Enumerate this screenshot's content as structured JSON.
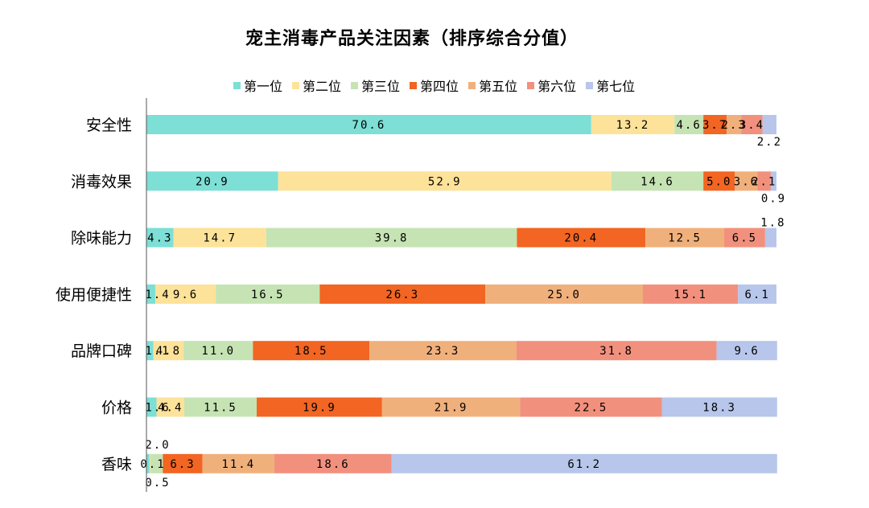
{
  "chart_data": {
    "type": "bar",
    "orientation": "horizontal",
    "stacked": true,
    "title": "宠主消毒产品关注因素（排序综合分值）",
    "categories": [
      "安全性",
      "消毒效果",
      "除味能力",
      "使用便捷性",
      "品牌口碑",
      "价格",
      "香味"
    ],
    "legend_position": "top",
    "series": [
      {
        "name": "第一位",
        "color": "#7ddfd6",
        "values": [
          70.6,
          20.9,
          4.3,
          1.4,
          1.1,
          1.6,
          0.5
        ]
      },
      {
        "name": "第二位",
        "color": "#fde29a",
        "values": [
          13.2,
          52.9,
          14.7,
          9.6,
          4.8,
          4.4,
          0.1
        ]
      },
      {
        "name": "第三位",
        "color": "#c6e3b4",
        "values": [
          4.6,
          14.6,
          39.8,
          16.5,
          11.0,
          11.5,
          2.0
        ]
      },
      {
        "name": "第四位",
        "color": "#f26522",
        "values": [
          3.7,
          5.0,
          20.4,
          26.3,
          18.5,
          19.9,
          6.3
        ]
      },
      {
        "name": "第五位",
        "color": "#f0b07c",
        "values": [
          2.3,
          3.6,
          12.5,
          25.0,
          23.3,
          21.9,
          11.4
        ]
      },
      {
        "name": "第六位",
        "color": "#f2907e",
        "values": [
          3.4,
          2.1,
          6.5,
          15.1,
          31.8,
          22.5,
          18.6
        ]
      },
      {
        "name": "第七位",
        "color": "#b7c6ea",
        "values": [
          2.2,
          0.9,
          1.8,
          6.1,
          9.6,
          18.3,
          61.2
        ]
      }
    ],
    "value_labels": [
      [
        "70.6",
        "13.2",
        "4.6",
        "3.7",
        "2.3",
        "3.4",
        "2.2"
      ],
      [
        "20.9",
        "52.9",
        "14.6",
        "5.0",
        "3.6",
        "2.1",
        "0.9"
      ],
      [
        "4.3",
        "14.7",
        "39.8",
        "20.4",
        "12.5",
        "6.5",
        "1.8"
      ],
      [
        "1.4",
        "9.6",
        "16.5",
        "26.3",
        "25.0",
        "15.1",
        "6.1"
      ],
      [
        "1.1",
        "4.8",
        "11.0",
        "18.5",
        "23.3",
        "31.8",
        "9.6"
      ],
      [
        "1.6",
        "4.4",
        "11.5",
        "19.9",
        "21.9",
        "22.5",
        "18.3"
      ],
      [
        "0.5",
        "0.1",
        "2.0",
        "6.3",
        "11.4",
        "18.6",
        "61.2"
      ]
    ],
    "xlim": [
      0,
      100
    ],
    "grid": false
  }
}
